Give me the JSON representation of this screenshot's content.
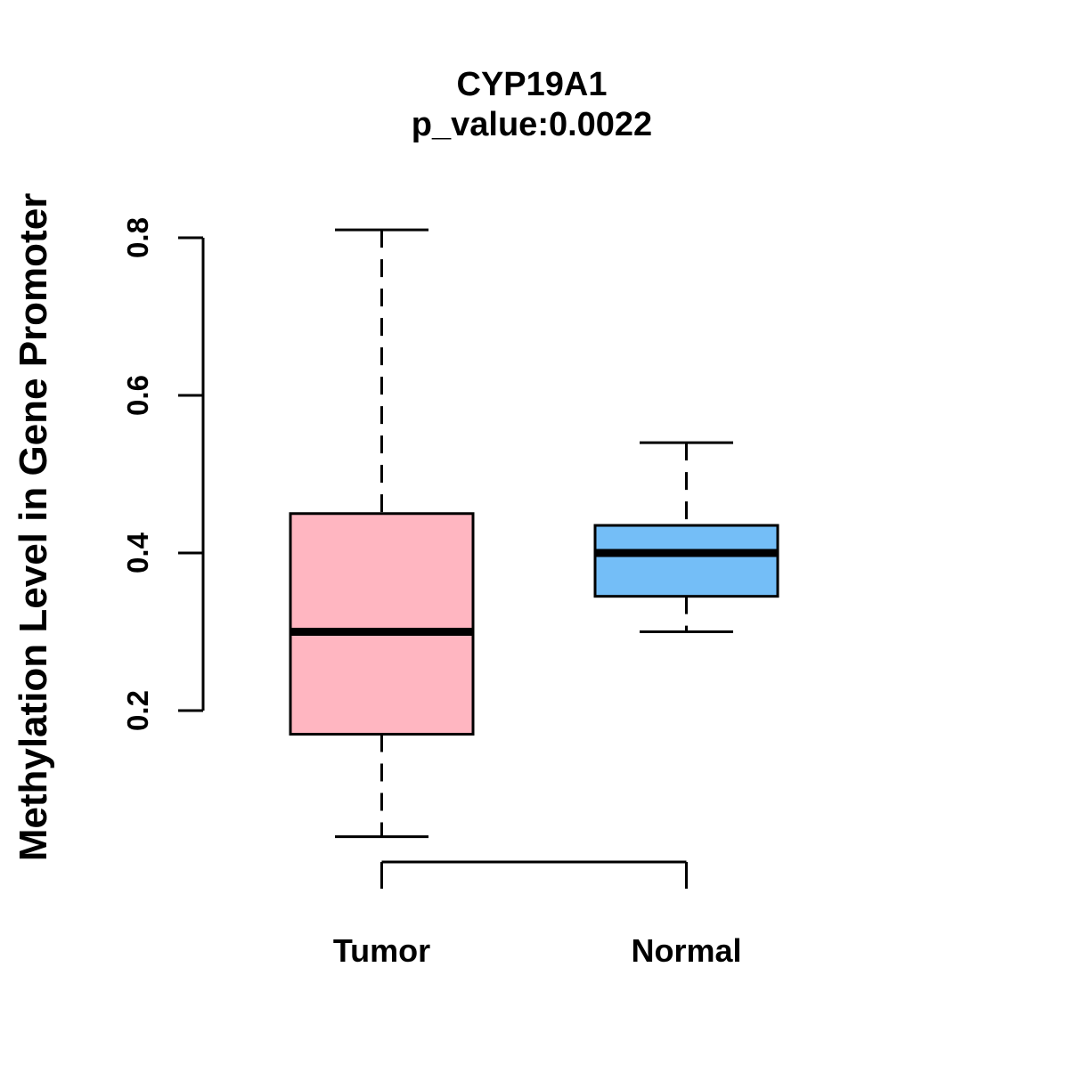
{
  "title": "CYP19A1",
  "subtitle": "p_value:0.0022",
  "chart_data": {
    "type": "boxplot",
    "title": "CYP19A1",
    "subtitle": "p_value:0.0022",
    "ylabel": "Methylation Level in Gene Promoter",
    "xlabel": "",
    "ylim": [
      0.04,
      0.81
    ],
    "yticks": [
      "0.2",
      "0.4",
      "0.6",
      "0.8"
    ],
    "grid": "off",
    "legend": "none",
    "categories": [
      "Tumor",
      "Normal"
    ],
    "series": [
      {
        "name": "Tumor",
        "color": "#FFB6C1",
        "min": 0.04,
        "q1": 0.17,
        "median": 0.3,
        "q3": 0.45,
        "max": 0.81
      },
      {
        "name": "Normal",
        "color": "#74BEF7",
        "min": 0.3,
        "q1": 0.345,
        "median": 0.4,
        "q3": 0.435,
        "max": 0.54
      }
    ],
    "colors": {
      "tumor_box": "#FFB6C1",
      "normal_box": "#74BEF7",
      "lines": "#000000",
      "background": "#FFFFFF"
    }
  }
}
